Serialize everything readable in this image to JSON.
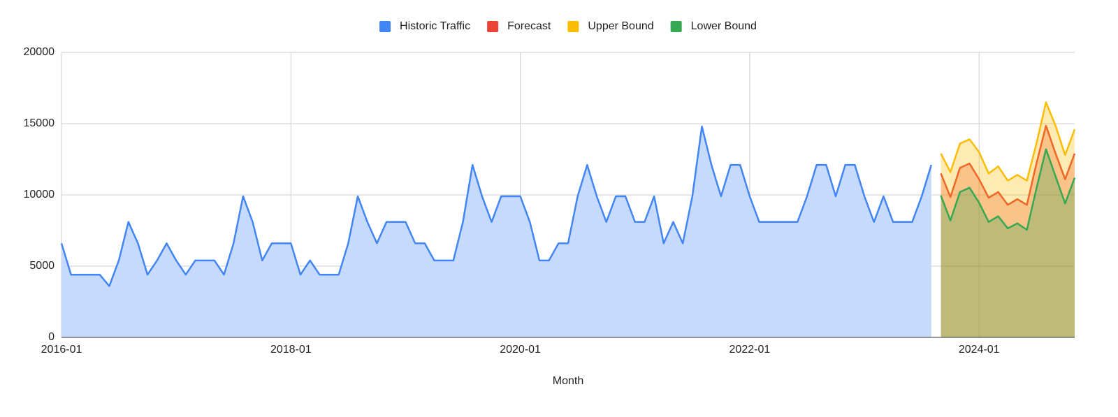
{
  "chart_data": {
    "type": "area",
    "x_label": "Month",
    "x": [
      "2016-01",
      "2016-02",
      "2016-03",
      "2016-04",
      "2016-05",
      "2016-06",
      "2016-07",
      "2016-08",
      "2016-09",
      "2016-10",
      "2016-11",
      "2016-12",
      "2017-01",
      "2017-02",
      "2017-03",
      "2017-04",
      "2017-05",
      "2017-06",
      "2017-07",
      "2017-08",
      "2017-09",
      "2017-10",
      "2017-11",
      "2017-12",
      "2018-01",
      "2018-02",
      "2018-03",
      "2018-04",
      "2018-05",
      "2018-06",
      "2018-07",
      "2018-08",
      "2018-09",
      "2018-10",
      "2018-11",
      "2018-12",
      "2019-01",
      "2019-02",
      "2019-03",
      "2019-04",
      "2019-05",
      "2019-06",
      "2019-07",
      "2019-08",
      "2019-09",
      "2019-10",
      "2019-11",
      "2019-12",
      "2020-01",
      "2020-02",
      "2020-03",
      "2020-04",
      "2020-05",
      "2020-06",
      "2020-07",
      "2020-08",
      "2020-09",
      "2020-10",
      "2020-11",
      "2020-12",
      "2021-01",
      "2021-02",
      "2021-03",
      "2021-04",
      "2021-05",
      "2021-06",
      "2021-07",
      "2021-08",
      "2021-09",
      "2021-10",
      "2021-11",
      "2021-12",
      "2022-01",
      "2022-02",
      "2022-03",
      "2022-04",
      "2022-05",
      "2022-06",
      "2022-07",
      "2022-08",
      "2022-09",
      "2022-10",
      "2022-11",
      "2022-12",
      "2023-01",
      "2023-02",
      "2023-03",
      "2023-04",
      "2023-05",
      "2023-06",
      "2023-07",
      "2023-08",
      "2023-09",
      "2023-10",
      "2023-11",
      "2023-12",
      "2024-01",
      "2024-02",
      "2024-03",
      "2024-04",
      "2024-05",
      "2024-06",
      "2024-07",
      "2024-08",
      "2024-09",
      "2024-10",
      "2024-11"
    ],
    "xticks": [
      "2016-01",
      "2018-01",
      "2020-01",
      "2022-01",
      "2024-01"
    ],
    "ylim": [
      0,
      20000
    ],
    "yticks": [
      0,
      5000,
      10000,
      15000,
      20000
    ],
    "grid": true,
    "legend": "top",
    "series": [
      {
        "name": "Historic Traffic",
        "color": "#4285f4",
        "fill": "#c6dafc",
        "fill_opacity": 1,
        "values": [
          6600,
          4400,
          4400,
          4400,
          4400,
          3600,
          5400,
          8100,
          6600,
          4400,
          5400,
          6600,
          5400,
          4400,
          5400,
          5400,
          5400,
          4400,
          6600,
          9900,
          8100,
          5400,
          6600,
          6600,
          6600,
          4400,
          5400,
          4400,
          4400,
          4400,
          6600,
          9900,
          8100,
          6600,
          8100,
          8100,
          8100,
          6600,
          6600,
          5400,
          5400,
          5400,
          8100,
          12100,
          9900,
          8100,
          9900,
          9900,
          9900,
          8100,
          5400,
          5400,
          6600,
          6600,
          9900,
          12100,
          9900,
          8100,
          9900,
          9900,
          8100,
          8100,
          9900,
          6600,
          8100,
          6600,
          9900,
          14800,
          12100,
          9900,
          12100,
          12100,
          9900,
          8100,
          8100,
          8100,
          8100,
          8100,
          9900,
          12100,
          12100,
          9900,
          12100,
          12100,
          9900,
          8100,
          9900,
          8100,
          8100,
          8100,
          9900,
          12100,
          null,
          null,
          null,
          null,
          null,
          null,
          null,
          null,
          null,
          null,
          null,
          null,
          null,
          null,
          null
        ]
      },
      {
        "name": "Forecast",
        "color": "#ea4335",
        "fill": "#ea4335",
        "fill_opacity": 0.3,
        "values": [
          null,
          null,
          null,
          null,
          null,
          null,
          null,
          null,
          null,
          null,
          null,
          null,
          null,
          null,
          null,
          null,
          null,
          null,
          null,
          null,
          null,
          null,
          null,
          null,
          null,
          null,
          null,
          null,
          null,
          null,
          null,
          null,
          null,
          null,
          null,
          null,
          null,
          null,
          null,
          null,
          null,
          null,
          null,
          null,
          null,
          null,
          null,
          null,
          null,
          null,
          null,
          null,
          null,
          null,
          null,
          null,
          null,
          null,
          null,
          null,
          null,
          null,
          null,
          null,
          null,
          null,
          null,
          null,
          null,
          null,
          null,
          null,
          null,
          null,
          null,
          null,
          null,
          null,
          null,
          null,
          null,
          null,
          null,
          null,
          null,
          null,
          null,
          null,
          null,
          null,
          null,
          null,
          11500,
          9850,
          11900,
          12200,
          11100,
          9800,
          10200,
          9300,
          9700,
          9300,
          12200,
          14850,
          12900,
          11100,
          12900
        ]
      },
      {
        "name": "Upper Bound",
        "color": "#fbbc04",
        "fill": "#fbbc04",
        "fill_opacity": 0.3,
        "values": [
          null,
          null,
          null,
          null,
          null,
          null,
          null,
          null,
          null,
          null,
          null,
          null,
          null,
          null,
          null,
          null,
          null,
          null,
          null,
          null,
          null,
          null,
          null,
          null,
          null,
          null,
          null,
          null,
          null,
          null,
          null,
          null,
          null,
          null,
          null,
          null,
          null,
          null,
          null,
          null,
          null,
          null,
          null,
          null,
          null,
          null,
          null,
          null,
          null,
          null,
          null,
          null,
          null,
          null,
          null,
          null,
          null,
          null,
          null,
          null,
          null,
          null,
          null,
          null,
          null,
          null,
          null,
          null,
          null,
          null,
          null,
          null,
          null,
          null,
          null,
          null,
          null,
          null,
          null,
          null,
          null,
          null,
          null,
          null,
          null,
          null,
          null,
          null,
          null,
          null,
          null,
          null,
          12900,
          11600,
          13600,
          13900,
          13000,
          11500,
          12000,
          11000,
          11400,
          11000,
          13600,
          16500,
          14850,
          12800,
          14600
        ]
      },
      {
        "name": "Lower Bound",
        "color": "#34a853",
        "fill": "#34a853",
        "fill_opacity": 0.3,
        "values": [
          null,
          null,
          null,
          null,
          null,
          null,
          null,
          null,
          null,
          null,
          null,
          null,
          null,
          null,
          null,
          null,
          null,
          null,
          null,
          null,
          null,
          null,
          null,
          null,
          null,
          null,
          null,
          null,
          null,
          null,
          null,
          null,
          null,
          null,
          null,
          null,
          null,
          null,
          null,
          null,
          null,
          null,
          null,
          null,
          null,
          null,
          null,
          null,
          null,
          null,
          null,
          null,
          null,
          null,
          null,
          null,
          null,
          null,
          null,
          null,
          null,
          null,
          null,
          null,
          null,
          null,
          null,
          null,
          null,
          null,
          null,
          null,
          null,
          null,
          null,
          null,
          null,
          null,
          null,
          null,
          null,
          null,
          null,
          null,
          null,
          null,
          null,
          null,
          null,
          null,
          null,
          null,
          9950,
          8200,
          10200,
          10500,
          9450,
          8100,
          8500,
          7650,
          8000,
          7550,
          10450,
          13200,
          11300,
          9400,
          11200
        ]
      }
    ]
  }
}
